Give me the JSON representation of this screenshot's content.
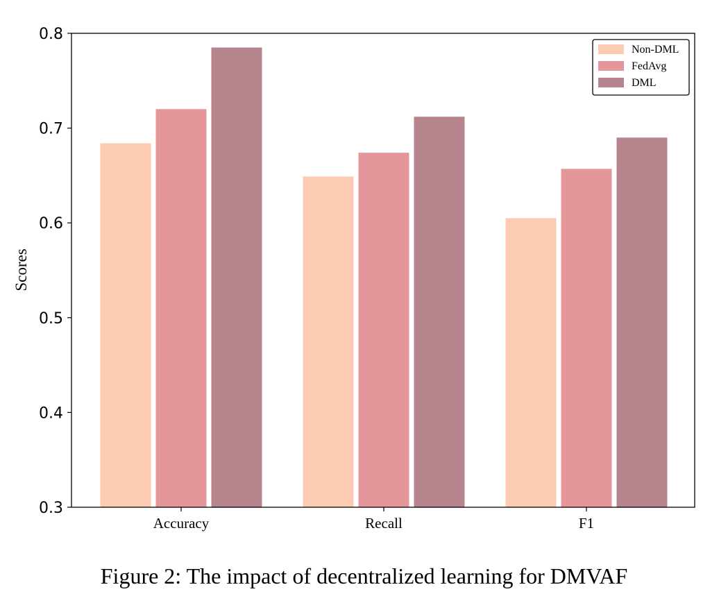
{
  "caption": "Figure 2: The impact of decentralized learning for DMVAF",
  "chart_data": {
    "type": "bar",
    "title": "",
    "xlabel": "",
    "ylabel": "Scores",
    "ylim": [
      0.3,
      0.8
    ],
    "yticks": [
      "0.3",
      "0.4",
      "0.5",
      "0.6",
      "0.7",
      "0.8"
    ],
    "categories": [
      "Accuracy",
      "Recall",
      "F1"
    ],
    "series": [
      {
        "name": "Non-DML",
        "color": "#fdcbb1",
        "values": [
          0.684,
          0.649,
          0.605
        ]
      },
      {
        "name": "FedAvg",
        "color": "#e4969a",
        "values": [
          0.72,
          0.674,
          0.657
        ]
      },
      {
        "name": "DML",
        "color": "#b5848c",
        "values": [
          0.785,
          0.712,
          0.69
        ]
      }
    ],
    "grid": false,
    "legend_position": "top-right"
  }
}
